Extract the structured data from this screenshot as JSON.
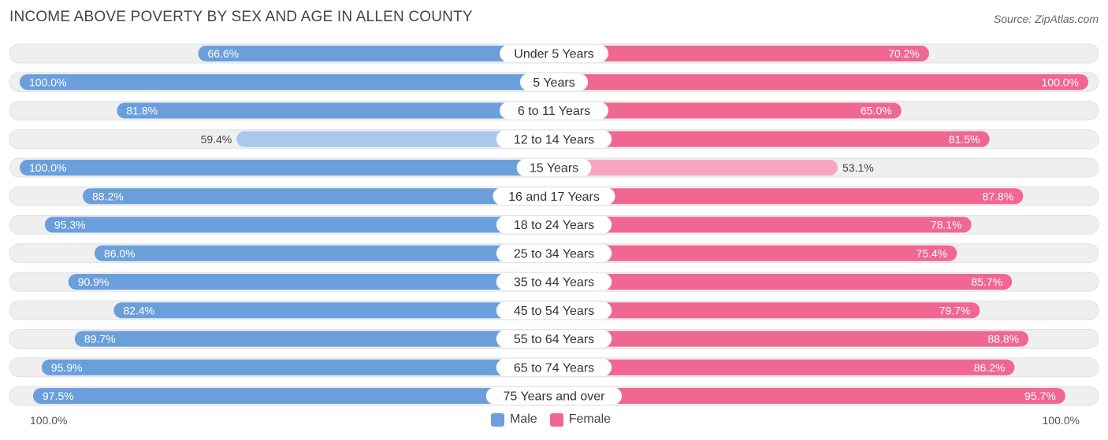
{
  "title": "INCOME ABOVE POVERTY BY SEX AND AGE IN ALLEN COUNTY",
  "source": "Source: ZipAtlas.com",
  "axis": {
    "left_label": "100.0%",
    "right_label": "100.0%"
  },
  "legend": {
    "male_label": "Male",
    "female_label": "Female"
  },
  "colors": {
    "male_strong": "#6a9fdc",
    "male_light": "#a9c8ec",
    "female_strong": "#f06792",
    "female_light": "#f7a6c0",
    "row_bg": "#efefef"
  },
  "chart_data": {
    "type": "bar",
    "orientation": "horizontal-diverging",
    "title": "INCOME ABOVE POVERTY BY SEX AND AGE IN ALLEN COUNTY",
    "xlim": [
      0,
      100
    ],
    "categories": [
      "Under 5 Years",
      "5 Years",
      "6 to 11 Years",
      "12 to 14 Years",
      "15 Years",
      "16 and 17 Years",
      "18 to 24 Years",
      "25 to 34 Years",
      "35 to 44 Years",
      "45 to 54 Years",
      "55 to 64 Years",
      "65 to 74 Years",
      "75 Years and over"
    ],
    "series": [
      {
        "name": "Male",
        "values": [
          66.6,
          100.0,
          81.8,
          59.4,
          100.0,
          88.2,
          95.3,
          86.0,
          90.9,
          82.4,
          89.7,
          95.9,
          97.5
        ]
      },
      {
        "name": "Female",
        "values": [
          70.2,
          100.0,
          65.0,
          81.5,
          53.1,
          87.8,
          78.1,
          75.4,
          85.7,
          79.7,
          88.8,
          86.2,
          95.7
        ]
      }
    ],
    "value_labels": {
      "Male": [
        "66.6%",
        "100.0%",
        "81.8%",
        "59.4%",
        "100.0%",
        "88.2%",
        "95.3%",
        "86.0%",
        "90.9%",
        "82.4%",
        "89.7%",
        "95.9%",
        "97.5%"
      ],
      "Female": [
        "70.2%",
        "100.0%",
        "65.0%",
        "81.5%",
        "53.1%",
        "87.8%",
        "78.1%",
        "75.4%",
        "85.7%",
        "79.7%",
        "88.8%",
        "86.2%",
        "95.7%"
      ]
    }
  }
}
